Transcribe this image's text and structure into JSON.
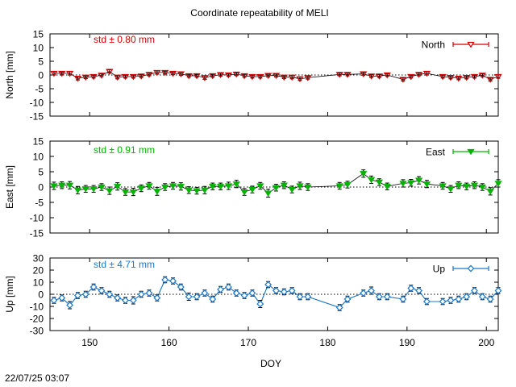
{
  "title": "Coordinate repeatability of MELI",
  "xlabel": "DOY",
  "footer_timestamp": "22/07/25 03:07",
  "colors": {
    "north": "#d40000",
    "east": "#00b400",
    "up": "#1a78d0",
    "error_bar": "#000000",
    "zero_line": "#000000"
  },
  "chart_data": [
    {
      "type": "scatter",
      "panel": "north",
      "ylabel": "North [mm]",
      "legend": "North",
      "legend_position": "top-right",
      "std_label": "std ± 0.80 mm",
      "xlim": [
        145,
        201.5
      ],
      "ylim": [
        -15,
        15
      ],
      "yticks": [
        -15,
        -10,
        -5,
        0,
        5,
        10,
        15
      ],
      "marker": "triangle-down-open",
      "x": [
        145.5,
        146.5,
        147.5,
        148.5,
        149.5,
        150.5,
        151.5,
        152.5,
        153.5,
        154.5,
        155.5,
        156.5,
        157.5,
        158.5,
        159.5,
        160.5,
        161.5,
        162.5,
        163.5,
        164.5,
        165.5,
        166.5,
        167.5,
        168.5,
        169.5,
        170.5,
        171.5,
        172.5,
        173.5,
        174.5,
        175.5,
        176.5,
        177.5,
        181.5,
        182.5,
        184.5,
        185.5,
        186.5,
        187.5,
        189.5,
        190.5,
        191.5,
        192.5,
        194.5,
        195.5,
        196.5,
        197.5,
        198.5,
        199.5,
        200.5,
        201.5
      ],
      "values": [
        0.6,
        0.6,
        0.6,
        -1.2,
        -0.8,
        -0.6,
        -0.1,
        1.3,
        -0.8,
        -0.6,
        -0.6,
        -0.4,
        0.2,
        0.9,
        0.9,
        0.6,
        0.4,
        -0.3,
        -0.3,
        -1.0,
        -0.3,
        0.1,
        0.0,
        0.3,
        -0.3,
        -0.6,
        -0.6,
        -0.2,
        -0.2,
        -0.8,
        -0.8,
        -1.4,
        -1.0,
        0.2,
        0.2,
        0.4,
        -0.4,
        -0.4,
        0.0,
        -1.6,
        -0.6,
        0.2,
        0.6,
        -0.6,
        -0.9,
        -1.2,
        -0.9,
        -0.6,
        -0.1,
        -1.6,
        -0.6
      ],
      "errors": [
        0.6,
        0.5,
        0.6,
        0.6,
        0.5,
        0.5,
        0.5,
        0.6,
        0.6,
        0.5,
        0.5,
        0.5,
        0.5,
        0.6,
        0.5,
        0.5,
        0.5,
        0.5,
        0.5,
        0.6,
        0.5,
        0.5,
        0.5,
        0.5,
        0.5,
        0.5,
        0.5,
        0.5,
        0.5,
        0.5,
        0.6,
        0.6,
        0.5,
        0.5,
        0.5,
        0.5,
        0.5,
        0.5,
        0.5,
        0.6,
        0.5,
        0.5,
        0.6,
        0.5,
        0.5,
        0.5,
        0.5,
        0.5,
        0.5,
        0.6,
        0.6
      ]
    },
    {
      "type": "scatter",
      "panel": "east",
      "ylabel": "East [mm]",
      "legend": "East",
      "legend_position": "top-right",
      "std_label": "std ± 0.91 mm",
      "xlim": [
        145,
        201.5
      ],
      "ylim": [
        -15,
        15
      ],
      "yticks": [
        -15,
        -10,
        -5,
        0,
        5,
        10,
        15
      ],
      "marker": "triangle-down-filled",
      "x": [
        145.5,
        146.5,
        147.5,
        148.5,
        149.5,
        150.5,
        151.5,
        152.5,
        153.5,
        154.5,
        155.5,
        156.5,
        157.5,
        158.5,
        159.5,
        160.5,
        161.5,
        162.5,
        163.5,
        164.5,
        165.5,
        166.5,
        167.5,
        168.5,
        169.5,
        170.5,
        171.5,
        172.5,
        173.5,
        174.5,
        175.5,
        176.5,
        177.5,
        181.5,
        182.5,
        184.5,
        185.5,
        186.5,
        187.5,
        189.5,
        190.5,
        191.5,
        192.5,
        194.5,
        195.5,
        196.5,
        197.5,
        198.5,
        199.5,
        200.5,
        201.5
      ],
      "values": [
        0.4,
        0.6,
        0.6,
        -1.0,
        -0.6,
        -0.6,
        0.0,
        -1.2,
        0.2,
        -1.6,
        -1.6,
        -0.4,
        0.4,
        -1.4,
        0.0,
        0.4,
        0.2,
        -1.0,
        -1.2,
        -1.0,
        0.2,
        0.2,
        0.4,
        1.0,
        -1.6,
        -0.8,
        0.4,
        -2.0,
        -0.2,
        0.6,
        -0.8,
        0.4,
        0.0,
        0.4,
        0.8,
        4.4,
        2.4,
        1.6,
        0.2,
        1.2,
        1.4,
        2.2,
        1.0,
        0.4,
        -0.6,
        0.6,
        0.2,
        0.6,
        0.0,
        -1.4,
        1.2
      ],
      "errors": [
        1.2,
        1.1,
        1.2,
        1.2,
        1.1,
        1.1,
        1.1,
        1.2,
        1.2,
        1.1,
        1.2,
        1.1,
        1.1,
        1.3,
        1.1,
        1.1,
        1.2,
        1.1,
        1.1,
        1.2,
        1.1,
        1.1,
        1.2,
        1.2,
        1.1,
        1.1,
        1.1,
        1.3,
        1.1,
        1.1,
        1.1,
        1.2,
        1.1,
        1.1,
        1.1,
        1.2,
        1.2,
        1.1,
        1.1,
        1.2,
        1.1,
        1.2,
        1.2,
        1.1,
        1.1,
        1.1,
        1.1,
        1.1,
        1.1,
        1.2,
        1.2
      ]
    },
    {
      "type": "line",
      "panel": "up",
      "ylabel": "Up [mm]",
      "legend": "Up",
      "legend_position": "top-right",
      "std_label": "std ± 4.71 mm",
      "xlim": [
        145,
        201.5
      ],
      "ylim": [
        -30,
        30
      ],
      "yticks": [
        -30,
        -20,
        -10,
        0,
        10,
        20,
        30
      ],
      "marker": "diamond-open",
      "x": [
        145.5,
        146.5,
        147.5,
        148.5,
        149.5,
        150.5,
        151.5,
        152.5,
        153.5,
        154.5,
        155.5,
        156.5,
        157.5,
        158.5,
        159.5,
        160.5,
        161.5,
        162.5,
        163.5,
        164.5,
        165.5,
        166.5,
        167.5,
        168.5,
        169.5,
        170.5,
        171.5,
        172.5,
        173.5,
        174.5,
        175.5,
        176.5,
        177.5,
        181.5,
        182.5,
        184.5,
        185.5,
        186.5,
        187.5,
        189.5,
        190.5,
        191.5,
        192.5,
        194.5,
        195.5,
        196.5,
        197.5,
        198.5,
        199.5,
        200.5,
        201.5
      ],
      "values": [
        -5,
        -3,
        -9,
        -1,
        0,
        6,
        3,
        0,
        -3,
        -5,
        -5,
        0,
        1,
        -3,
        12,
        11,
        6,
        -2,
        -2,
        1,
        -4,
        4,
        6,
        1,
        -1,
        1,
        -8,
        8,
        3,
        2,
        3,
        -2,
        -2,
        -11,
        -4,
        1,
        3,
        -2,
        -2,
        -4,
        5,
        3,
        -6,
        -6,
        -5,
        -4,
        -2,
        3,
        -2,
        -4,
        3
      ],
      "errors": [
        2.5,
        2.5,
        3,
        2.5,
        2.5,
        2.5,
        2.5,
        2.5,
        2.5,
        2.5,
        3,
        2.5,
        2.5,
        2.5,
        2.5,
        2.5,
        2.5,
        3,
        2.5,
        2.5,
        2.5,
        2.5,
        2.5,
        2.5,
        2.5,
        2.5,
        3,
        2.5,
        2.5,
        2.5,
        2.5,
        2.5,
        2.5,
        2.5,
        2.5,
        2.5,
        3,
        2.5,
        2.5,
        2.5,
        2.5,
        2.5,
        2.5,
        2.5,
        2.5,
        2.5,
        2.5,
        2.5,
        2.5,
        2.5,
        2.5
      ]
    }
  ],
  "shared_xaxis": {
    "ticks": [
      150,
      160,
      170,
      180,
      190,
      200
    ],
    "labels": [
      "150",
      "160",
      "170",
      "180",
      "190",
      "200"
    ]
  }
}
